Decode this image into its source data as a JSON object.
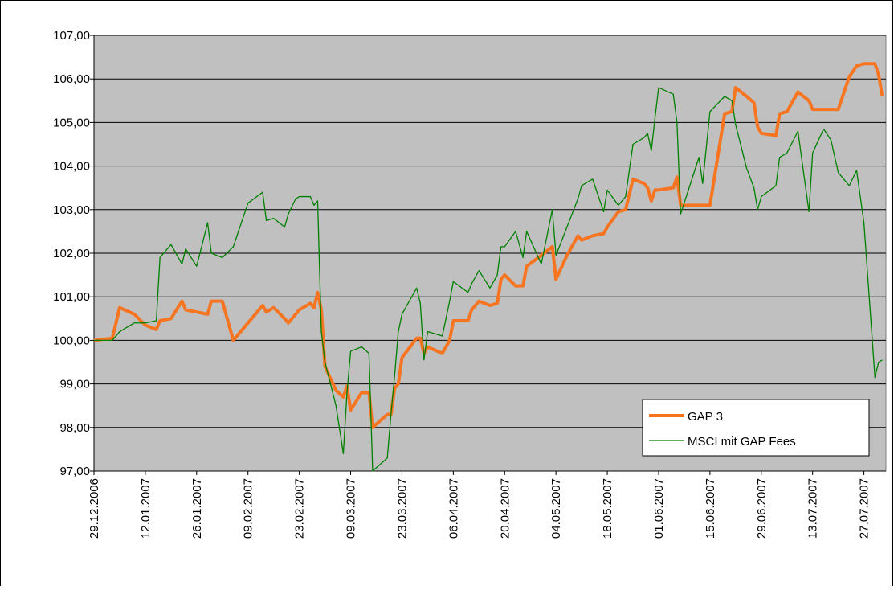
{
  "chart_data": {
    "type": "line",
    "x": [
      "29.12.2006",
      "03.01.2007",
      "05.01.2007",
      "09.01.2007",
      "12.01.2007",
      "15.01.2007",
      "16.01.2007",
      "19.01.2007",
      "22.01.2007",
      "23.01.2007",
      "26.01.2007",
      "29.01.2007",
      "30.01.2007",
      "02.02.2007",
      "05.02.2007",
      "09.02.2007",
      "13.02.2007",
      "14.02.2007",
      "16.02.2007",
      "19.02.2007",
      "20.02.2007",
      "22.02.2007",
      "23.02.2007",
      "26.02.2007",
      "27.02.2007",
      "28.02.2007",
      "01.03.2007",
      "02.03.2007",
      "05.03.2007",
      "07.03.2007",
      "08.03.2007",
      "09.03.2007",
      "12.03.2007",
      "14.03.2007",
      "15.03.2007",
      "19.03.2007",
      "20.03.2007",
      "21.03.2007",
      "22.03.2007",
      "23.03.2007",
      "27.03.2007",
      "28.03.2007",
      "29.03.2007",
      "30.03.2007",
      "03.04.2007",
      "05.04.2007",
      "06.04.2007",
      "10.04.2007",
      "11.04.2007",
      "13.04.2007",
      "16.04.2007",
      "18.04.2007",
      "19.04.2007",
      "20.04.2007",
      "23.04.2007",
      "25.04.2007",
      "26.04.2007",
      "30.04.2007",
      "03.05.2007",
      "04.05.2007",
      "07.05.2007",
      "10.05.2007",
      "11.05.2007",
      "14.05.2007",
      "17.05.2007",
      "18.05.2007",
      "21.05.2007",
      "23.05.2007",
      "25.05.2007",
      "28.05.2007",
      "29.05.2007",
      "30.05.2007",
      "31.05.2007",
      "01.06.2007",
      "05.06.2007",
      "06.06.2007",
      "07.06.2007",
      "12.06.2007",
      "13.06.2007",
      "15.06.2007",
      "19.06.2007",
      "21.06.2007",
      "22.06.2007",
      "25.06.2007",
      "27.06.2007",
      "28.06.2007",
      "29.06.2007",
      "03.07.2007",
      "04.07.2007",
      "06.07.2007",
      "09.07.2007",
      "12.07.2007",
      "13.07.2007",
      "16.07.2007",
      "18.07.2007",
      "20.07.2007",
      "23.07.2007",
      "25.07.2007",
      "27.07.2007",
      "30.07.2007",
      "31.07.2007",
      "01.08.2007"
    ],
    "series": [
      {
        "name": "GAP 3",
        "color": "#f77420",
        "values": [
          100.0,
          100.05,
          100.75,
          100.6,
          100.35,
          100.25,
          100.45,
          100.5,
          100.9,
          100.7,
          100.65,
          100.6,
          100.9,
          100.9,
          100.0,
          100.4,
          100.8,
          100.65,
          100.75,
          100.5,
          100.4,
          100.6,
          100.7,
          100.85,
          100.75,
          101.1,
          100.7,
          99.4,
          98.85,
          98.7,
          98.95,
          98.4,
          98.8,
          98.8,
          98.0,
          98.3,
          98.3,
          98.9,
          99.0,
          99.6,
          100.05,
          100.05,
          99.7,
          99.85,
          99.7,
          100.0,
          100.45,
          100.45,
          100.7,
          100.9,
          100.8,
          100.85,
          101.4,
          101.5,
          101.25,
          101.25,
          101.7,
          101.95,
          102.15,
          101.4,
          101.95,
          102.4,
          102.3,
          102.4,
          102.45,
          102.6,
          102.95,
          103.0,
          103.7,
          103.6,
          103.5,
          103.2,
          103.45,
          103.45,
          103.5,
          103.75,
          103.1,
          103.1,
          103.1,
          103.1,
          105.2,
          105.25,
          105.8,
          105.6,
          105.45,
          104.9,
          104.75,
          104.7,
          105.2,
          105.25,
          105.7,
          105.5,
          105.3,
          105.3,
          105.3,
          105.3,
          106.05,
          106.3,
          106.35,
          106.35,
          106.1,
          105.6
        ]
      },
      {
        "name": "MSCI mit GAP Fees",
        "color": "#008000",
        "values": [
          100.0,
          100.0,
          100.2,
          100.4,
          100.4,
          100.45,
          101.9,
          102.2,
          101.75,
          102.1,
          101.7,
          102.7,
          102.0,
          101.9,
          102.15,
          103.15,
          103.4,
          102.75,
          102.8,
          102.6,
          102.9,
          103.25,
          103.3,
          103.3,
          103.1,
          103.2,
          100.2,
          99.5,
          98.5,
          97.4,
          98.8,
          99.75,
          99.85,
          99.7,
          97.0,
          97.3,
          98.3,
          99.2,
          100.2,
          100.6,
          101.2,
          100.85,
          99.55,
          100.2,
          100.1,
          100.9,
          101.35,
          101.1,
          101.3,
          101.6,
          101.2,
          101.5,
          102.15,
          102.15,
          102.5,
          101.9,
          102.5,
          101.75,
          103.0,
          101.95,
          102.6,
          103.25,
          103.55,
          103.7,
          102.95,
          103.45,
          103.1,
          103.3,
          104.5,
          104.65,
          104.75,
          104.35,
          105.1,
          105.8,
          105.65,
          105.0,
          102.9,
          104.2,
          103.6,
          105.25,
          105.6,
          105.5,
          104.95,
          103.95,
          103.5,
          103.0,
          103.3,
          103.55,
          104.2,
          104.3,
          104.8,
          102.95,
          104.3,
          104.85,
          104.6,
          103.85,
          103.55,
          103.9,
          102.7,
          99.15,
          99.5,
          99.55
        ]
      }
    ],
    "xlim": [
      "29.12.2006",
      "02.08.2007"
    ],
    "xticks": [
      "29.12.2006",
      "12.01.2007",
      "26.01.2007",
      "09.02.2007",
      "23.02.2007",
      "09.03.2007",
      "23.03.2007",
      "06.04.2007",
      "20.04.2007",
      "04.05.2007",
      "18.05.2007",
      "01.06.2007",
      "15.06.2007",
      "29.06.2007",
      "13.07.2007",
      "27.07.2007"
    ],
    "ylim": [
      97,
      107
    ],
    "yticks": [
      {
        "value": 97,
        "label": "97,00"
      },
      {
        "value": 98,
        "label": "98,00"
      },
      {
        "value": 99,
        "label": "99,00"
      },
      {
        "value": 100,
        "label": "100,00"
      },
      {
        "value": 101,
        "label": "101,00"
      },
      {
        "value": 102,
        "label": "102,00"
      },
      {
        "value": 103,
        "label": "103,00"
      },
      {
        "value": 104,
        "label": "104,00"
      },
      {
        "value": 105,
        "label": "105,00"
      },
      {
        "value": 106,
        "label": "106,00"
      },
      {
        "value": 107,
        "label": "107,00"
      }
    ],
    "grid": true,
    "legend": "lower right"
  }
}
